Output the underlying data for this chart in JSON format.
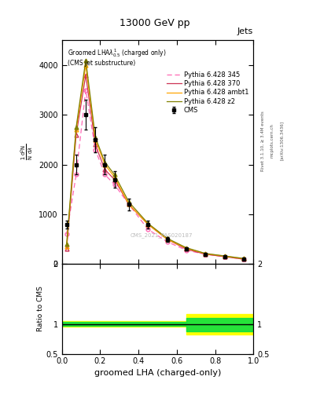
{
  "title": "13000 GeV pp",
  "title_right": "Jets",
  "plot_title": "Groomed LHA$\\lambda^{1}_{0.5}$ (charged only) (CMS jet substructure)",
  "xlabel": "groomed LHA (charged-only)",
  "ylabel_main": "1 / $\\mathrm{N}$ / $\\mathrm{d}^2\\mathrm{N}$ / $\\mathrm{d}\\lambda$",
  "ylabel_ratio": "Ratio to CMS",
  "cms_watermark": "CMS_2021_PAS020187",
  "rivet_label": "Rivet 3.1.10, ≥ 3.4M events",
  "mcplots_label": "mcplots.cern.ch",
  "arxiv_label": "[arXiv:1306.3436]",
  "x_data": [
    0.025,
    0.075,
    0.125,
    0.175,
    0.225,
    0.275,
    0.35,
    0.45,
    0.55,
    0.65,
    0.75,
    0.85,
    0.95
  ],
  "cms_y": [
    800,
    2000,
    3000,
    2500,
    2000,
    1700,
    1200,
    800,
    500,
    300,
    200,
    150,
    100
  ],
  "cms_yerr": [
    80,
    200,
    300,
    250,
    200,
    170,
    120,
    80,
    50,
    30,
    20,
    15,
    10
  ],
  "p345_y": [
    600,
    1800,
    3500,
    2300,
    1800,
    1600,
    1200,
    700,
    450,
    280,
    200,
    150,
    100
  ],
  "p370_y": [
    300,
    2600,
    3800,
    2400,
    1900,
    1700,
    1200,
    800,
    500,
    300,
    200,
    150,
    100
  ],
  "pambt1_y": [
    350,
    2700,
    4000,
    2500,
    2000,
    1750,
    1200,
    800,
    500,
    320,
    210,
    160,
    110
  ],
  "pz2_y": [
    400,
    2750,
    4100,
    2550,
    2050,
    1800,
    1250,
    820,
    520,
    330,
    215,
    165,
    115
  ],
  "ratio_x": [
    0.0,
    0.05,
    0.1,
    0.15,
    0.2,
    0.25,
    0.3,
    0.35,
    0.4,
    0.45,
    0.5,
    0.55,
    0.6,
    0.65,
    0.7,
    0.75,
    0.8,
    0.85,
    0.9,
    0.95,
    1.0
  ],
  "ratio_green_low": [
    0.97,
    0.97,
    0.97,
    0.97,
    0.97,
    0.97,
    0.97,
    0.97,
    0.97,
    0.97,
    0.97,
    0.97,
    0.97,
    0.88,
    0.88,
    0.88,
    0.88,
    0.88,
    0.88,
    0.88,
    0.9
  ],
  "ratio_green_high": [
    1.03,
    1.03,
    1.03,
    1.03,
    1.03,
    1.03,
    1.03,
    1.03,
    1.03,
    1.03,
    1.03,
    1.03,
    1.03,
    1.1,
    1.1,
    1.1,
    1.1,
    1.1,
    1.1,
    1.1,
    1.1
  ],
  "ratio_yellow_low": [
    0.95,
    0.95,
    0.95,
    0.95,
    0.95,
    0.95,
    0.95,
    0.95,
    0.95,
    0.95,
    0.95,
    0.95,
    0.95,
    0.82,
    0.82,
    0.82,
    0.82,
    0.82,
    0.82,
    0.82,
    0.85
  ],
  "ratio_yellow_high": [
    1.05,
    1.05,
    1.05,
    1.05,
    1.05,
    1.05,
    1.05,
    1.05,
    1.05,
    1.05,
    1.05,
    1.05,
    1.05,
    1.17,
    1.17,
    1.17,
    1.17,
    1.17,
    1.17,
    1.17,
    1.15
  ],
  "color_345": "#ff69b4",
  "color_370": "#cc3355",
  "color_ambt1": "#ffa500",
  "color_z2": "#808000",
  "color_cms": "black",
  "color_green": "#00dd44",
  "color_yellow": "#ffff00",
  "ylim_main": [
    0,
    4500
  ],
  "yticks_main": [
    0,
    1000,
    2000,
    3000,
    4000
  ],
  "ylim_ratio": [
    0.5,
    2.0
  ],
  "yticks_ratio": [
    0.5,
    1.0,
    2.0
  ],
  "bg_color": "#ffffff"
}
